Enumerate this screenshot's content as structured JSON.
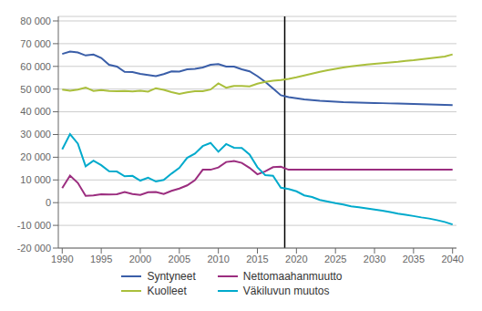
{
  "chart_data": {
    "type": "line",
    "x": [
      1990,
      1991,
      1992,
      1993,
      1994,
      1995,
      1996,
      1997,
      1998,
      1999,
      2000,
      2001,
      2002,
      2003,
      2004,
      2005,
      2006,
      2007,
      2008,
      2009,
      2010,
      2011,
      2012,
      2013,
      2014,
      2015,
      2016,
      2017,
      2018,
      2019,
      2020,
      2021,
      2022,
      2023,
      2024,
      2025,
      2026,
      2027,
      2028,
      2029,
      2030,
      2031,
      2032,
      2033,
      2034,
      2035,
      2036,
      2037,
      2038,
      2039,
      2040
    ],
    "series": [
      {
        "name": "Syntyneet",
        "color": "#3A5EA8",
        "values": [
          65500,
          66500,
          66100,
          64800,
          65200,
          63700,
          60700,
          59900,
          57600,
          57500,
          56700,
          56200,
          55700,
          56600,
          57800,
          57700,
          58700,
          58900,
          59500,
          60700,
          61000,
          59900,
          59900,
          58700,
          57800,
          55700,
          53200,
          50300,
          47300,
          46500,
          46000,
          45500,
          45200,
          44900,
          44700,
          44500,
          44300,
          44200,
          44100,
          44000,
          43900,
          43800,
          43700,
          43600,
          43500,
          43400,
          43300,
          43200,
          43100,
          43000,
          42900
        ]
      },
      {
        "name": "Kuolleet",
        "color": "#AABF3C",
        "values": [
          49800,
          49300,
          49800,
          50700,
          49200,
          49600,
          49200,
          49100,
          49200,
          49000,
          49300,
          48900,
          50400,
          49700,
          48700,
          47900,
          48600,
          49100,
          49100,
          49800,
          52500,
          50600,
          51400,
          51400,
          51200,
          52400,
          53200,
          53700,
          54000,
          54500,
          55200,
          56000,
          56800,
          57600,
          58300,
          58900,
          59500,
          60000,
          60400,
          60800,
          61100,
          61400,
          61700,
          62000,
          62400,
          62700,
          63100,
          63500,
          63900,
          64300,
          65300
        ]
      },
      {
        "name": "Nettomaahanmuutto",
        "color": "#9B2D7F",
        "values": [
          6400,
          11900,
          8700,
          3000,
          3200,
          3700,
          3600,
          3700,
          4700,
          3800,
          3400,
          4600,
          4700,
          3800,
          5200,
          6200,
          7600,
          9900,
          14500,
          14500,
          15500,
          17900,
          18300,
          17500,
          15300,
          12500,
          13800,
          15600,
          15800,
          14500,
          14500,
          14500,
          14500,
          14500,
          14500,
          14500,
          14500,
          14500,
          14500,
          14500,
          14500,
          14500,
          14500,
          14500,
          14500,
          14500,
          14500,
          14500,
          14500,
          14500,
          14500
        ]
      },
      {
        "name": "Väkiluvun muutos",
        "color": "#00AACC",
        "values": [
          23500,
          30200,
          26000,
          16000,
          18500,
          16500,
          13800,
          13700,
          11600,
          11800,
          9700,
          11000,
          9300,
          10000,
          12800,
          15300,
          19700,
          21600,
          24900,
          26300,
          22400,
          25800,
          24200,
          24100,
          21200,
          15600,
          12100,
          11800,
          6600,
          6000,
          5000,
          3200,
          2500,
          1200,
          500,
          -200,
          -800,
          -1600,
          -2000,
          -2500,
          -3000,
          -3500,
          -4100,
          -4800,
          -5300,
          -5900,
          -6500,
          -7000,
          -7700,
          -8500,
          -9600
        ]
      }
    ],
    "xlim": [
      1989.5,
      2040.5
    ],
    "xticks": [
      1990,
      1995,
      2000,
      2005,
      2010,
      2015,
      2020,
      2025,
      2030,
      2035,
      2040
    ],
    "ylim": [
      -20000,
      82000
    ],
    "yticks": [
      {
        "value": -20000,
        "label": "-20 000"
      },
      {
        "value": -10000,
        "label": "-10 000"
      },
      0,
      {
        "value": 10000,
        "label": "10 000"
      },
      {
        "value": 20000,
        "label": "20 000"
      },
      {
        "value": 30000,
        "label": "30 000"
      },
      {
        "value": 40000,
        "label": "40 000"
      },
      {
        "value": 50000,
        "label": "50 000"
      },
      {
        "value": 60000,
        "label": "60 000"
      },
      {
        "value": 70000,
        "label": "70 000"
      },
      {
        "value": 80000,
        "label": "80 000"
      }
    ],
    "vline": 2018.5,
    "grid": true,
    "legend": "bottom"
  }
}
